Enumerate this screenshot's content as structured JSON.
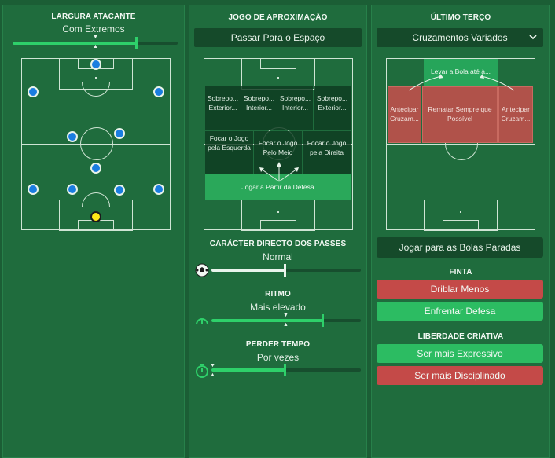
{
  "left": {
    "title": "LARGURA ATACANTE",
    "value": "Com Extremos",
    "slider_level": 0.68
  },
  "middle": {
    "title": "JOGO DE APROXIMAÇÃO",
    "selected": "Passar Para o Espaço",
    "zones": {
      "over_ext_left": "Sobrepo... Exterior...",
      "over_int_left": "Sobrepo... Interior...",
      "over_int_right": "Sobrepo... Interior...",
      "over_ext_right": "Sobrepo... Exterior...",
      "focus_left": "Focar o Jogo pela Esquerda",
      "focus_middle": "Focar o Jogo Pelo Meio",
      "focus_right": "Focar o Jogo pela Direita",
      "play_from_defense": "Jogar a Partir da Defesa"
    },
    "passing": {
      "title": "CARÁCTER DIRECTO DOS PASSES",
      "value": "Normal",
      "level": 0.5
    },
    "tempo": {
      "title": "RITMO",
      "value": "Mais elevado",
      "level": 0.75
    },
    "timewasting": {
      "title": "PERDER TEMPO",
      "value": "Por vezes",
      "level": 0.5
    },
    "icons": {
      "passing": "football-icon",
      "tempo": "speedometer-icon",
      "timewasting": "stopwatch-icon"
    }
  },
  "right": {
    "title": "ÚLTIMO TERÇO",
    "dropdown": "Cruzamentos Variados",
    "zones": {
      "bring_ball": "Levar a Bola até à...",
      "early_cross_left": "Antecipar Cruzam...",
      "shoot_on_sight": "Rematar Sempre que Possível",
      "early_cross_right": "Antecipar Cruzam..."
    },
    "set_pieces": "Jogar para as Bolas Paradas",
    "dribbling_title": "FINTA",
    "dribble_less": "Driblar Menos",
    "take_on_defense": "Enfrentar Defesa",
    "creative_title": "LIBERDADE CRIATIVA",
    "more_expressive": "Ser mais Expressivo",
    "more_disciplined": "Ser mais Disciplinado"
  },
  "colors": {
    "panel": "#1f6c3d",
    "background": "#1b5e35",
    "accent_green": "#2ed06a",
    "red": "#c44a48",
    "player_blue": "#1a7de0",
    "goalkeeper_yellow": "#ffe817"
  }
}
